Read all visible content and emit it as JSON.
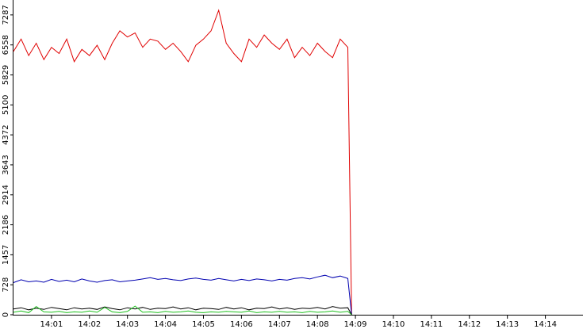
{
  "chart_data": {
    "type": "line",
    "x": [
      0,
      0.2,
      0.4,
      0.6,
      0.8,
      1,
      1.2,
      1.4,
      1.6,
      1.8,
      2,
      2.2,
      2.4,
      2.6,
      2.8,
      3,
      3.2,
      3.4,
      3.6,
      3.8,
      4,
      4.2,
      4.4,
      4.6,
      4.8,
      5,
      5.2,
      5.4,
      5.6,
      5.8,
      6,
      6.2,
      6.4,
      6.6,
      6.8,
      7,
      7.2,
      7.4,
      7.6,
      7.8,
      8,
      8.2,
      8.4,
      8.6,
      8.8,
      8.9
    ],
    "series": [
      {
        "name": "red",
        "color": "#e00000",
        "values": [
          6400,
          6700,
          6300,
          6600,
          6200,
          6500,
          6350,
          6700,
          6150,
          6450,
          6300,
          6550,
          6200,
          6600,
          6900,
          6750,
          6850,
          6500,
          6700,
          6650,
          6450,
          6600,
          6400,
          6150,
          6550,
          6700,
          6900,
          7400,
          6600,
          6350,
          6150,
          6700,
          6500,
          6800,
          6600,
          6450,
          6700,
          6250,
          6500,
          6300,
          6600,
          6400,
          6250,
          6700,
          6500,
          0
        ]
      },
      {
        "name": "blue",
        "color": "#0000b0",
        "values": [
          780,
          850,
          800,
          820,
          790,
          860,
          810,
          840,
          800,
          870,
          820,
          790,
          830,
          850,
          800,
          820,
          840,
          870,
          900,
          860,
          880,
          850,
          830,
          870,
          890,
          860,
          840,
          880,
          850,
          820,
          860,
          830,
          870,
          850,
          820,
          860,
          840,
          880,
          900,
          870,
          920,
          960,
          900,
          940,
          880,
          0
        ]
      },
      {
        "name": "black",
        "color": "#000000",
        "values": [
          140,
          170,
          120,
          160,
          130,
          180,
          150,
          120,
          170,
          140,
          160,
          130,
          190,
          150,
          120,
          170,
          140,
          180,
          130,
          160,
          150,
          190,
          140,
          170,
          120,
          160,
          150,
          130,
          180,
          140,
          170,
          120,
          160,
          150,
          190,
          140,
          170,
          130,
          160,
          150,
          180,
          140,
          200,
          160,
          170,
          0
        ]
      },
      {
        "name": "green",
        "color": "#20c020",
        "values": [
          60,
          90,
          50,
          200,
          70,
          60,
          80,
          50,
          70,
          60,
          90,
          60,
          180,
          70,
          50,
          80,
          210,
          60,
          70,
          50,
          80,
          60,
          70,
          90,
          60,
          50,
          70,
          60,
          80,
          70,
          60,
          90,
          50,
          70,
          60,
          80,
          60,
          70,
          50,
          80,
          60,
          70,
          90,
          60,
          80,
          0
        ]
      }
    ],
    "xlim": [
      0,
      14.99
    ],
    "xticks": [
      {
        "value": 1,
        "label": "14:01"
      },
      {
        "value": 2,
        "label": "14:02"
      },
      {
        "value": 3,
        "label": "14:03"
      },
      {
        "value": 4,
        "label": "14:04"
      },
      {
        "value": 5,
        "label": "14:05"
      },
      {
        "value": 6,
        "label": "14:06"
      },
      {
        "value": 7,
        "label": "14:07"
      },
      {
        "value": 8,
        "label": "14:08"
      },
      {
        "value": 9,
        "label": "14:09"
      },
      {
        "value": 10,
        "label": "14:10"
      },
      {
        "value": 11,
        "label": "14:11"
      },
      {
        "value": 12,
        "label": "14:12"
      },
      {
        "value": 13,
        "label": "14:13"
      },
      {
        "value": 14,
        "label": "14:14"
      }
    ],
    "ylim": [
      0,
      7650
    ],
    "yticks": [
      0,
      728,
      1457,
      2186,
      2914,
      3643,
      4372,
      5100,
      5829,
      6558,
      7287
    ]
  }
}
